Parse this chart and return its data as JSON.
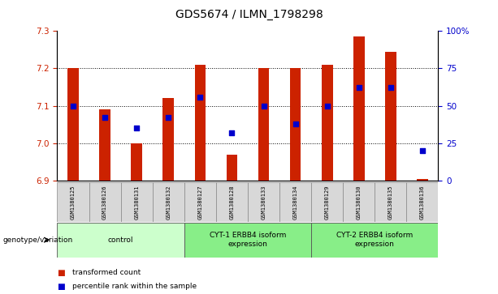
{
  "title": "GDS5674 / ILMN_1798298",
  "samples": [
    "GSM1380125",
    "GSM1380126",
    "GSM1380131",
    "GSM1380132",
    "GSM1380127",
    "GSM1380128",
    "GSM1380133",
    "GSM1380134",
    "GSM1380129",
    "GSM1380130",
    "GSM1380135",
    "GSM1380136"
  ],
  "bar_values": [
    7.2,
    7.09,
    7.0,
    7.12,
    7.21,
    6.97,
    7.2,
    7.2,
    7.21,
    7.285,
    7.245,
    6.905
  ],
  "dot_values": [
    50,
    42,
    35,
    42,
    56,
    32,
    50,
    38,
    50,
    62,
    62,
    20
  ],
  "ylim_left": [
    6.9,
    7.3
  ],
  "ylim_right": [
    0,
    100
  ],
  "yticks_left": [
    6.9,
    7.0,
    7.1,
    7.2,
    7.3
  ],
  "yticks_right": [
    0,
    25,
    50,
    75,
    100
  ],
  "bar_color": "#cc2200",
  "dot_color": "#0000cc",
  "bar_bottom": 6.9,
  "groups": [
    {
      "label": "control",
      "start": 0,
      "end": 4,
      "color": "#ccffcc"
    },
    {
      "label": "CYT-1 ERBB4 isoform\nexpression",
      "start": 4,
      "end": 8,
      "color": "#88ee88"
    },
    {
      "label": "CYT-2 ERBB4 isoform\nexpression",
      "start": 8,
      "end": 12,
      "color": "#88ee88"
    }
  ],
  "xlabel_group": "genotype/variation",
  "grid_color": "#888888",
  "tick_label_color_left": "#cc2200",
  "tick_label_color_right": "#0000cc",
  "title_fontsize": 10,
  "tick_fontsize": 7.5,
  "label_fontsize": 7.5,
  "bar_width": 0.35
}
